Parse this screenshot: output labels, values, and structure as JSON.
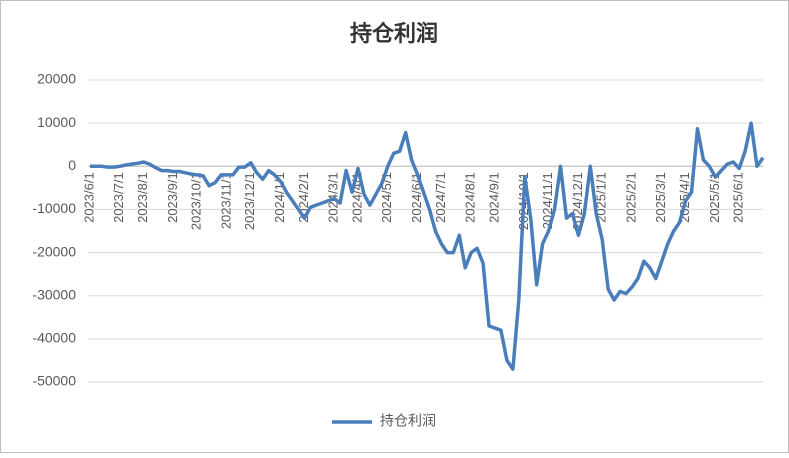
{
  "chart_data": {
    "type": "line",
    "title": "持仓利润",
    "categories": [
      "2023/6/1",
      null,
      null,
      null,
      null,
      "2023/7/1",
      null,
      null,
      null,
      "2023/8/1",
      null,
      null,
      null,
      null,
      "2023/9/1",
      null,
      null,
      null,
      "2023/10/1",
      null,
      null,
      null,
      null,
      "2023/11/1",
      null,
      null,
      null,
      "2023/12/1",
      null,
      null,
      null,
      null,
      "2024/1/1",
      null,
      null,
      null,
      "2024/2/1",
      null,
      null,
      null,
      null,
      "2024/3/1",
      null,
      null,
      null,
      "2024/4/1",
      null,
      null,
      null,
      null,
      "2024/5/1",
      null,
      null,
      null,
      null,
      "2024/6/1",
      null,
      null,
      null,
      "2024/7/1",
      null,
      null,
      null,
      null,
      "2024/8/1",
      null,
      null,
      null,
      "2024/9/1",
      null,
      null,
      null,
      null,
      "2024/10/1",
      null,
      null,
      null,
      "2024/11/1",
      null,
      null,
      null,
      null,
      "2024/12/1",
      null,
      null,
      null,
      "2025/1/1",
      null,
      null,
      null,
      null,
      "2025/2/1",
      null,
      null,
      null,
      null,
      "2025/3/1",
      null,
      null,
      null,
      "2025/4/1",
      null,
      null,
      null,
      null,
      "2025/5/1",
      null,
      null,
      null,
      "2025/6/1",
      null,
      null,
      null,
      null
    ],
    "series": [
      {
        "name": "持仓利润",
        "color": "#4a7ebb",
        "values": [
          0,
          0,
          0,
          -200,
          -200,
          0,
          300,
          500,
          700,
          1000,
          500,
          -300,
          -1000,
          -1000,
          -1200,
          -1200,
          -1500,
          -1800,
          -2000,
          -2200,
          -4500,
          -3800,
          -2000,
          -2000,
          -2000,
          -200,
          -200,
          800,
          -1500,
          -3000,
          -1000,
          -2000,
          -3500,
          -6000,
          -8000,
          -10000,
          -12000,
          -9500,
          -9000,
          -8500,
          -8000,
          -7500,
          -8500,
          -1000,
          -6000,
          -500,
          -6500,
          -9000,
          -6500,
          -4000,
          0,
          3000,
          3500,
          7800,
          1500,
          -2000,
          -6000,
          -10000,
          -15000,
          -18000,
          -20000,
          -20000,
          -16000,
          -23500,
          -20000,
          -19000,
          -22500,
          -37000,
          -37500,
          -38000,
          -45000,
          -47000,
          -31000,
          -2500,
          -12000,
          -27500,
          -18000,
          -15000,
          -10000,
          0,
          -12000,
          -11000,
          -16000,
          -11000,
          0,
          -11000,
          -17000,
          -28500,
          -31000,
          -29000,
          -29500,
          -28000,
          -26000,
          -22000,
          -23500,
          -26000,
          -22000,
          -18000,
          -15000,
          -13000,
          -8000,
          -6000,
          8700,
          1500,
          0,
          -2500,
          -1000,
          500,
          1000,
          -500,
          3500,
          10000,
          0,
          2000
        ]
      }
    ],
    "ylim": [
      -50000,
      20000
    ],
    "yticks": [
      -50000,
      -40000,
      -30000,
      -20000,
      -10000,
      0,
      10000,
      20000
    ],
    "grid": true,
    "legend": "bottom"
  }
}
